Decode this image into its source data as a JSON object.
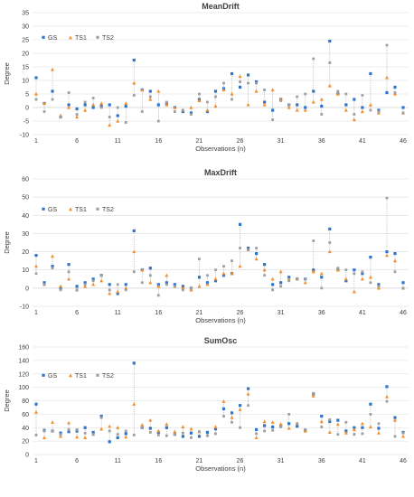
{
  "colors": {
    "GS": "#2e74c8",
    "TS1": "#f28e2b",
    "TS2": "#9e9e9e",
    "grid": "#dcdcdc",
    "drop": "#b0b0b0"
  },
  "legend": [
    "GS",
    "TS1",
    "TS2"
  ],
  "chart_data": [
    {
      "type": "scatter",
      "title": "MeanDrift",
      "xlabel": "Observations (n)",
      "ylabel": "Degree",
      "ylim": [
        -10,
        35
      ],
      "ystep": 5,
      "xticks": [
        1,
        6,
        11,
        16,
        21,
        26,
        31,
        36,
        41,
        46
      ],
      "series": [
        {
          "name": "GS",
          "values": [
            11,
            1.5,
            6,
            -3.5,
            1,
            -0.5,
            1,
            0,
            0.5,
            1,
            -3,
            0.5,
            17.5,
            6.5,
            6,
            1,
            1.5,
            0,
            -1.5,
            -2,
            3,
            -1.5,
            6,
            7,
            12.5,
            7.5,
            12,
            9.5,
            2,
            -1,
            3,
            1,
            1,
            0,
            6,
            0.5,
            24.5,
            5,
            1,
            3,
            0,
            12.5,
            -1,
            5.5,
            7.5,
            0
          ]
        },
        {
          "name": "TS1",
          "values": [
            5,
            1.5,
            14,
            -3,
            0,
            -3.5,
            -1,
            1,
            1.5,
            -6.5,
            -5,
            1.5,
            9,
            6.5,
            3,
            6,
            1,
            0,
            -1,
            0,
            2.5,
            -1,
            0.5,
            6.5,
            5,
            11.5,
            1,
            6,
            1,
            6.5,
            3,
            0,
            -1,
            -1,
            2,
            3,
            8,
            5,
            -1,
            -4.5,
            -1.5,
            1,
            -2,
            11,
            5,
            -2
          ]
        },
        {
          "name": "TS2",
          "values": [
            3,
            -1.5,
            3,
            -3.5,
            5.5,
            -2.5,
            2,
            3.5,
            0,
            -3.5,
            0,
            -5.5,
            4.5,
            -1.5,
            4,
            -5,
            2,
            -1.5,
            -1,
            -2.5,
            5,
            2,
            4,
            9,
            3,
            9.5,
            9,
            9,
            6.5,
            -4.5,
            2.5,
            1,
            4,
            5,
            18,
            -2.5,
            16.5,
            6,
            5,
            -2.5,
            4.5,
            -1,
            -1.5,
            23,
            5.5,
            -2
          ]
        }
      ]
    },
    {
      "type": "scatter",
      "title": "MaxDrift",
      "xlabel": "Observations (n)",
      "ylabel": "Degree",
      "ylim": [
        -10,
        60
      ],
      "ystep": 10,
      "xticks": [
        1,
        6,
        11,
        16,
        21,
        26,
        31,
        36,
        41,
        46
      ],
      "series": [
        {
          "name": "GS",
          "values": [
            18,
            3,
            12,
            0,
            13,
            1,
            3,
            5,
            7,
            2,
            -3,
            2,
            31.5,
            10,
            11,
            2,
            3,
            2,
            1,
            0,
            6,
            3,
            4,
            7,
            8,
            35,
            22,
            19,
            13,
            2,
            3,
            6,
            5,
            5,
            10,
            6,
            32.5,
            10,
            4,
            10,
            8,
            17,
            2,
            20,
            19,
            3
          ]
        },
        {
          "name": "TS1",
          "values": [
            12,
            2,
            17.5,
            1,
            5,
            -1,
            1,
            2,
            4,
            -3,
            -2,
            0,
            20,
            10,
            3,
            1,
            7,
            1,
            0,
            -1,
            1,
            2,
            5,
            8,
            8,
            12,
            21,
            16,
            10,
            5,
            9,
            5,
            5,
            3,
            9,
            8,
            20,
            10,
            5,
            -2,
            5,
            6,
            0,
            18,
            15,
            0
          ]
        },
        {
          "name": "TS2",
          "values": [
            8,
            2,
            11,
            -1,
            9,
            -1,
            2,
            4,
            7,
            -1,
            2,
            -1,
            9,
            3,
            7,
            -4,
            2,
            1,
            -1,
            0,
            16,
            7,
            10,
            12,
            15,
            22,
            21,
            22,
            7,
            -1,
            1,
            4,
            5,
            5,
            26,
            0,
            25,
            11,
            10,
            8,
            9,
            3,
            1,
            49.5,
            9,
            0
          ]
        }
      ]
    },
    {
      "type": "scatter",
      "title": "SumOsc",
      "xlabel": "Observations (n)",
      "ylabel": "Degree",
      "ylim": [
        0,
        160
      ],
      "ystep": 20,
      "xticks": [
        1,
        6,
        11,
        16,
        21,
        26,
        31,
        36,
        41,
        46
      ],
      "series": [
        {
          "name": "GS",
          "values": [
            75,
            36,
            35,
            32,
            34,
            35,
            40,
            33,
            57,
            19,
            25,
            31,
            136,
            40,
            39,
            33,
            40,
            30,
            27,
            32,
            27,
            33,
            38,
            68,
            62,
            73,
            98,
            37,
            43,
            41,
            43,
            46,
            42,
            36,
            90,
            57,
            49,
            51,
            35,
            40,
            40,
            75,
            39,
            101,
            55,
            33
          ]
        },
        {
          "name": "TS1",
          "values": [
            63,
            25,
            48,
            27,
            47,
            26,
            25,
            30,
            38,
            42,
            40,
            26,
            75,
            44,
            51,
            35,
            45,
            34,
            41,
            38,
            34,
            29,
            41,
            79,
            55,
            67,
            90,
            25,
            49,
            48,
            45,
            39,
            46,
            35,
            87,
            49,
            33,
            45,
            32,
            37,
            46,
            41,
            32,
            86,
            51,
            27
          ]
        },
        {
          "name": "TS2",
          "values": [
            29,
            35,
            35,
            30,
            37,
            37,
            32,
            30,
            55,
            35,
            30,
            35,
            29,
            40,
            33,
            29,
            28,
            30,
            32,
            25,
            34,
            28,
            31,
            57,
            48,
            40,
            73,
            31,
            35,
            36,
            41,
            60,
            46,
            37,
            91,
            41,
            52,
            30,
            48,
            30,
            31,
            60,
            46,
            79,
            27,
            32
          ]
        }
      ]
    }
  ]
}
